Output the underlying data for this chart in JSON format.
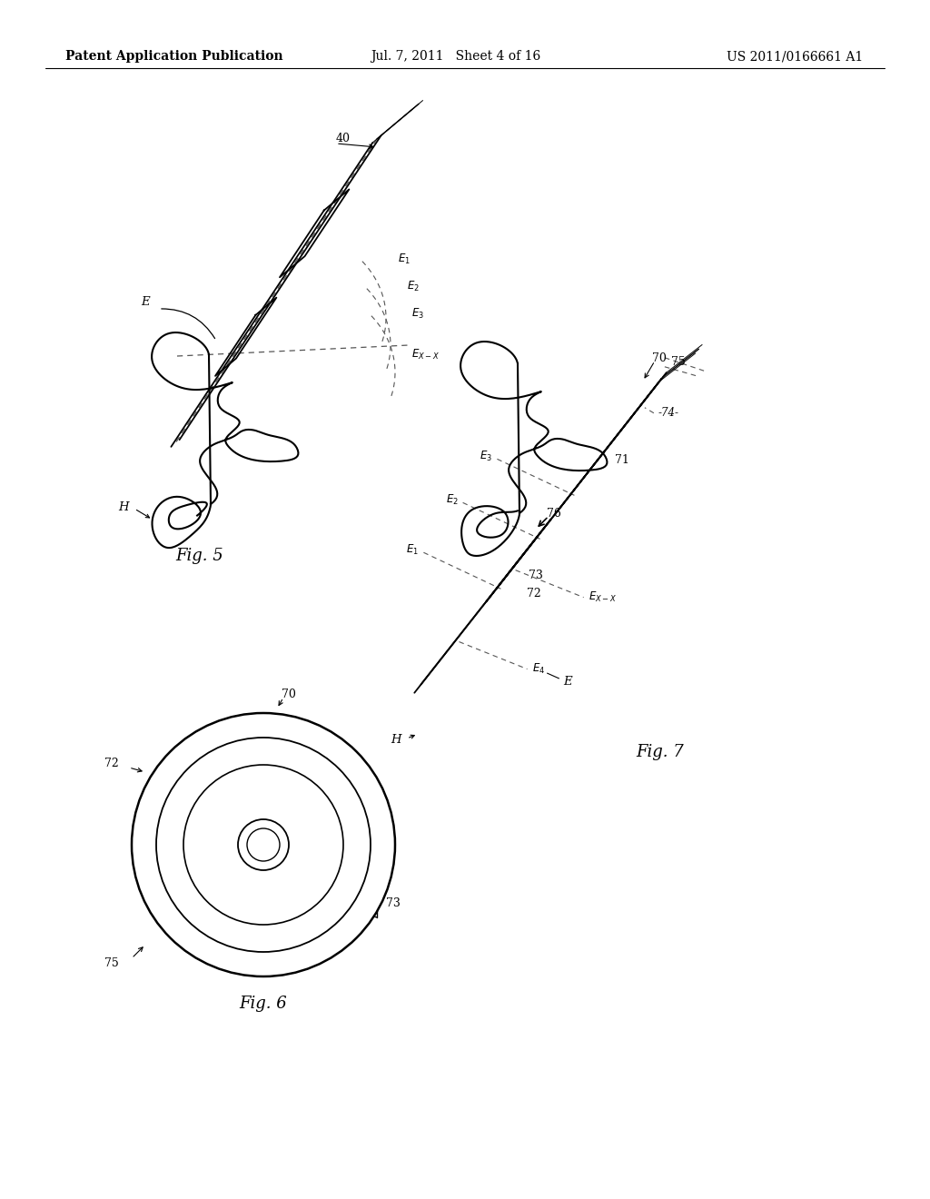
{
  "background_color": "#ffffff",
  "header_left": "Patent Application Publication",
  "header_center": "Jul. 7, 2011   Sheet 4 of 16",
  "header_right": "US 2011/0166661 A1",
  "fig5_label": "Fig. 5",
  "fig6_label": "Fig. 6",
  "fig7_label": "Fig. 7"
}
